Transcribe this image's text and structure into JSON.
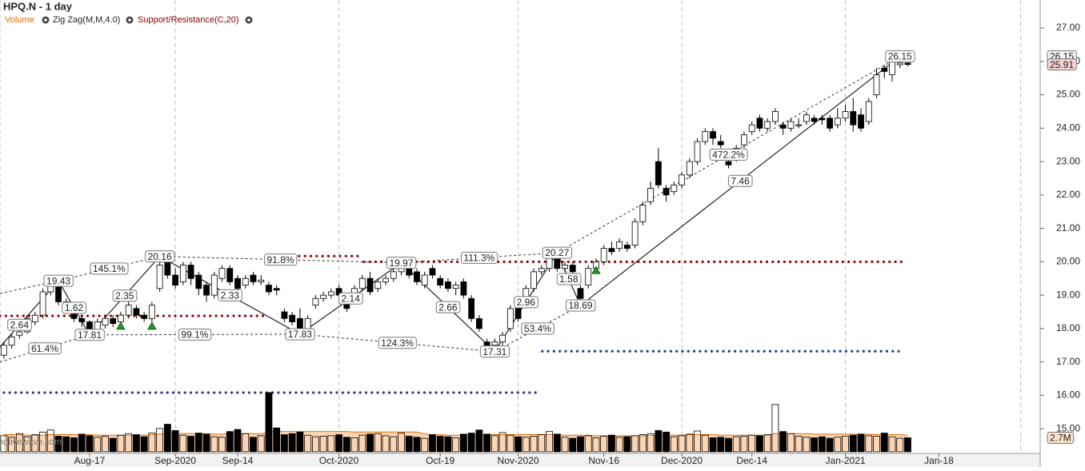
{
  "chart_data": {
    "type": "candlestick",
    "title": "HPQ.N - 1 day",
    "legend": [
      "Volume",
      "Zig Zag(M,M,4.0)",
      "Support/Resistance(C,20)"
    ],
    "legend_colors": [
      "#e07000",
      "#222222",
      "#8b0000"
    ],
    "watermark": "motivewave.com",
    "xlim": [
      -0.5,
      133
    ],
    "xticks": [
      {
        "value": 11,
        "label": "Aug-17"
      },
      {
        "value": 22,
        "label": "Sep-2020"
      },
      {
        "value": 30,
        "label": "Sep-14"
      },
      {
        "value": 43,
        "label": "Oct-2020"
      },
      {
        "value": 56,
        "label": "Oct-19"
      },
      {
        "value": 66,
        "label": "Nov-2020"
      },
      {
        "value": 77,
        "label": "Nov-16"
      },
      {
        "value": 87,
        "label": "Dec-2020"
      },
      {
        "value": 96,
        "label": "Dec-14"
      },
      {
        "value": 108,
        "label": "Jan-2021"
      },
      {
        "value": 120,
        "label": "Jan-18"
      }
    ],
    "xgrid": [
      -0.5,
      22,
      43,
      66,
      87,
      108,
      130.5
    ],
    "ylim": [
      14.26,
      27.84
    ],
    "yticks": [
      {
        "value": 15,
        "label": "15.00"
      },
      {
        "value": 16,
        "label": "16.00"
      },
      {
        "value": 17,
        "label": "17.00"
      },
      {
        "value": 18,
        "label": "18.00"
      },
      {
        "value": 19,
        "label": "19.00"
      },
      {
        "value": 20,
        "label": "20.00"
      },
      {
        "value": 21,
        "label": "21.00"
      },
      {
        "value": 22,
        "label": "22.00"
      },
      {
        "value": 23,
        "label": "23.00"
      },
      {
        "value": 24,
        "label": "24.00"
      },
      {
        "value": 25,
        "label": "25.00"
      },
      {
        "value": 26,
        "label": "26.00"
      },
      {
        "value": 27,
        "label": "27.00"
      }
    ],
    "up_color": "#ffffff",
    "down_color": "#000000",
    "open": [
      17.2,
      17.5,
      17.8,
      17.9,
      18.2,
      18.4,
      19.1,
      19.4,
      18.8,
      18.5,
      18.3,
      18.2,
      17.95,
      18.1,
      18.3,
      18.2,
      18.4,
      18.6,
      18.4,
      18.3,
      19.2,
      20.0,
      19.6,
      19.4,
      19.9,
      19.6,
      19.3,
      19.0,
      19.5,
      19.8,
      19.5,
      19.3,
      19.6,
      19.4,
      19.3,
      19.2,
      18.5,
      18.4,
      18.3,
      18.0,
      18.7,
      18.9,
      19.0,
      19.2,
      18.8,
      18.9,
      19.2,
      19.5,
      19.2,
      19.4,
      19.5,
      19.7,
      19.8,
      19.7,
      19.3,
      19.8,
      19.5,
      19.4,
      19.2,
      19.4,
      18.9,
      18.3,
      17.6,
      17.5,
      17.6,
      18.0,
      18.6,
      18.7,
      19.2,
      19.7,
      19.8,
      20.1,
      19.8,
      19.9,
      19.2,
      19.3,
      19.8,
      20.0,
      20.4,
      20.4,
      20.5,
      20.5,
      21.2,
      21.8,
      23.0,
      22.2,
      22.1,
      22.3,
      22.6,
      23.0,
      23.6,
      23.9,
      23.6,
      23.0,
      23.1,
      23.5,
      23.9,
      24.3,
      24.0,
      24.2,
      24.1,
      24.0,
      24.1,
      24.2,
      24.3,
      24.3,
      24.3,
      24.1,
      24.3,
      24.5,
      24.4,
      24.2,
      25.0,
      25.8,
      25.6,
      25.9,
      25.95
    ],
    "high": [
      17.6,
      17.85,
      18.0,
      18.4,
      18.5,
      19.2,
      19.35,
      19.43,
      18.9,
      18.6,
      18.4,
      18.25,
      18.3,
      18.4,
      18.4,
      18.5,
      18.8,
      18.7,
      18.5,
      18.8,
      20.16,
      20.1,
      19.8,
      20.0,
      20.0,
      19.7,
      19.4,
      19.7,
      19.9,
      19.9,
      19.6,
      19.6,
      19.7,
      19.6,
      19.4,
      19.3,
      18.6,
      18.5,
      18.6,
      18.4,
      19.0,
      19.1,
      19.2,
      19.3,
      18.9,
      19.3,
      19.6,
      19.7,
      19.5,
      19.6,
      19.8,
      19.97,
      19.9,
      19.8,
      19.7,
      19.9,
      19.6,
      19.5,
      19.4,
      19.5,
      19.0,
      18.4,
      17.7,
      17.7,
      17.9,
      18.7,
      18.7,
      19.3,
      19.8,
      19.9,
      20.2,
      20.27,
      20.0,
      20.0,
      19.3,
      19.9,
      20.1,
      20.5,
      20.6,
      20.7,
      20.6,
      21.3,
      21.8,
      22.4,
      23.4,
      22.3,
      22.4,
      22.7,
      23.1,
      23.7,
      24.0,
      24.0,
      23.8,
      23.1,
      23.5,
      23.9,
      24.2,
      24.4,
      24.3,
      24.6,
      24.2,
      24.3,
      24.3,
      24.5,
      24.4,
      24.4,
      24.4,
      24.6,
      24.7,
      24.9,
      24.6,
      24.9,
      25.8,
      25.9,
      26.1,
      26.15,
      26.0
    ],
    "low": [
      17.1,
      17.4,
      17.7,
      17.85,
      18.1,
      18.3,
      19.0,
      18.7,
      18.5,
      18.2,
      18.05,
      17.81,
      17.9,
      18.0,
      18.05,
      18.1,
      18.3,
      18.3,
      18.2,
      18.2,
      19.1,
      19.5,
      19.2,
      19.3,
      19.3,
      19.0,
      18.8,
      18.9,
      19.4,
      19.3,
      19.1,
      19.2,
      19.3,
      19.3,
      19.0,
      19.0,
      18.2,
      18.1,
      17.83,
      17.9,
      18.6,
      18.8,
      18.9,
      18.9,
      18.5,
      18.8,
      19.1,
      19.0,
      19.1,
      19.3,
      19.4,
      19.6,
      19.5,
      19.3,
      19.2,
      19.5,
      19.2,
      19.1,
      19.0,
      18.9,
      18.2,
      17.9,
      17.35,
      17.31,
      17.5,
      17.9,
      18.2,
      18.6,
      19.1,
      19.6,
      19.7,
      19.7,
      19.7,
      19.6,
      18.69,
      19.2,
      19.7,
      19.9,
      20.2,
      20.3,
      20.3,
      20.4,
      21.1,
      21.7,
      22.2,
      21.8,
      22.0,
      22.2,
      22.5,
      22.9,
      23.5,
      23.5,
      23.4,
      22.8,
      23.0,
      23.4,
      23.8,
      23.9,
      23.9,
      24.1,
      23.8,
      23.9,
      24.0,
      24.1,
      24.1,
      24.1,
      23.9,
      24.0,
      24.2,
      23.9,
      23.9,
      24.1,
      24.9,
      25.5,
      25.4,
      25.8,
      25.85
    ],
    "close": [
      17.5,
      17.75,
      17.9,
      18.3,
      18.4,
      19.1,
      19.3,
      18.8,
      18.6,
      18.3,
      18.2,
      17.95,
      18.2,
      18.3,
      18.15,
      18.4,
      18.7,
      18.4,
      18.3,
      18.7,
      19.9,
      19.6,
      19.3,
      19.9,
      19.5,
      19.2,
      19.0,
      19.6,
      19.8,
      19.4,
      19.2,
      19.5,
      19.4,
      19.45,
      19.1,
      19.15,
      18.3,
      18.2,
      18.0,
      18.3,
      18.9,
      19.0,
      19.1,
      19.0,
      18.6,
      19.2,
      19.5,
      19.1,
      19.4,
      19.5,
      19.7,
      19.9,
      19.6,
      19.4,
      19.6,
      19.6,
      19.3,
      19.2,
      19.3,
      19.0,
      18.3,
      18.0,
      17.5,
      17.6,
      17.8,
      18.6,
      18.3,
      19.2,
      19.7,
      19.8,
      20.1,
      19.8,
      19.9,
      19.7,
      18.9,
      19.8,
      20.0,
      20.4,
      20.3,
      20.6,
      20.4,
      21.2,
      21.7,
      22.2,
      22.3,
      22.0,
      22.3,
      22.6,
      23.0,
      23.6,
      23.9,
      23.7,
      23.5,
      22.9,
      23.4,
      23.8,
      24.1,
      24.0,
      24.2,
      24.5,
      24.0,
      24.2,
      24.1,
      24.4,
      24.2,
      24.25,
      24.0,
      24.3,
      24.5,
      24.1,
      24.0,
      24.8,
      25.6,
      25.7,
      26.0,
      25.95,
      25.91
    ],
    "volume": {
      "name": "Volume",
      "color": "#e07000",
      "ylim": [
        0,
        12
      ],
      "values": [
        3.1,
        2.8,
        3.5,
        2.9,
        3.3,
        3.8,
        4.2,
        3.0,
        2.9,
        2.7,
        3.4,
        3.1,
        2.8,
        3.0,
        2.6,
        3.2,
        3.5,
        3.3,
        2.9,
        3.6,
        4.5,
        5.3,
        4.1,
        3.2,
        3.0,
        3.6,
        3.4,
        2.9,
        2.8,
        3.9,
        4.3,
        3.5,
        2.8,
        3.1,
        11.4,
        4.6,
        3.3,
        3.5,
        3.8,
        3.2,
        2.9,
        3.0,
        3.1,
        3.3,
        2.8,
        2.7,
        3.2,
        3.4,
        3.5,
        3.1,
        2.9,
        3.6,
        3.0,
        2.8,
        2.6,
        3.3,
        3.0,
        2.9,
        2.7,
        3.4,
        3.6,
        4.2,
        3.4,
        3.1,
        3.7,
        3.2,
        2.9,
        2.8,
        3.0,
        3.3,
        3.9,
        3.4,
        2.8,
        2.6,
        2.9,
        3.1,
        2.7,
        3.0,
        3.2,
        2.8,
        2.9,
        3.1,
        3.3,
        3.5,
        4.1,
        3.8,
        2.9,
        3.1,
        3.4,
        4.0,
        3.2,
        2.7,
        2.8,
        2.6,
        2.9,
        3.0,
        3.2,
        3.1,
        3.3,
        9.1,
        3.9,
        3.5,
        3.0,
        2.8,
        2.7,
        2.9,
        2.6,
        2.8,
        3.0,
        3.2,
        3.4,
        3.1,
        3.0,
        3.6,
        2.9,
        2.6,
        2.7
      ],
      "ma": [
        3.3,
        3.3,
        3.3,
        3.2,
        3.2,
        3.2,
        3.3,
        3.3,
        3.3,
        3.3,
        3.3,
        3.3,
        3.2,
        3.2,
        3.2,
        3.2,
        3.2,
        3.2,
        3.2,
        3.3,
        3.4,
        3.5,
        3.5,
        3.5,
        3.5,
        3.5,
        3.5,
        3.4,
        3.4,
        3.5,
        3.5,
        3.5,
        3.5,
        3.4,
        3.8,
        3.9,
        3.9,
        3.9,
        3.9,
        3.9,
        3.9,
        3.9,
        3.9,
        3.9,
        3.9,
        3.8,
        3.8,
        3.8,
        3.8,
        3.8,
        3.8,
        3.8,
        3.8,
        3.8,
        3.4,
        3.3,
        3.3,
        3.2,
        3.2,
        3.2,
        3.2,
        3.2,
        3.3,
        3.3,
        3.3,
        3.3,
        3.3,
        3.3,
        3.3,
        3.3,
        3.3,
        3.3,
        3.2,
        3.2,
        3.2,
        3.2,
        3.1,
        3.1,
        3.1,
        3.1,
        3.1,
        3.1,
        3.1,
        3.2,
        3.2,
        3.2,
        3.2,
        3.2,
        3.3,
        3.3,
        3.3,
        3.3,
        3.2,
        3.2,
        3.2,
        3.2,
        3.2,
        3.2,
        3.2,
        3.5,
        3.5,
        3.5,
        3.5,
        3.5,
        3.4,
        3.4,
        3.4,
        3.4,
        3.4,
        3.4,
        3.4,
        3.4,
        3.3,
        3.3,
        3.3,
        3.3,
        3.2
      ],
      "last_label": "2.7M"
    },
    "zigzag": {
      "x": [
        -3,
        7,
        11,
        20,
        38,
        51,
        63,
        71,
        74,
        115
      ],
      "y": [
        16.79,
        19.43,
        17.81,
        20.16,
        17.83,
        19.97,
        17.31,
        20.27,
        18.69,
        26.15
      ],
      "swings": [
        2.64,
        1.62,
        2.35,
        2.33,
        2.14,
        2.66,
        2.96,
        1.58,
        7.46
      ]
    },
    "trend_highs": {
      "x": [
        -0.5,
        7,
        20,
        51,
        71,
        115
      ],
      "y": [
        19.05,
        19.43,
        20.16,
        19.97,
        20.27,
        26.15
      ],
      "labels": [
        null,
        "145.1%",
        "91.8%",
        "111.3%",
        "472.2%"
      ]
    },
    "trend_lows": {
      "x": [
        -0.5,
        11,
        38,
        63,
        74
      ],
      "y": [
        17.0,
        17.81,
        17.83,
        17.31,
        18.69
      ],
      "labels": [
        "61.4%",
        "99.1%",
        "124.3%",
        "53.4%"
      ]
    },
    "levels": [
      {
        "value": 18.38,
        "from": -0.5,
        "to": 33.4,
        "color": "#990000"
      },
      {
        "value": 20.17,
        "from": 34.9,
        "to": 45.7,
        "color": "#990000"
      },
      {
        "value": 20.0,
        "from": 46.2,
        "to": 115.5,
        "color": "#990000"
      },
      {
        "value": 17.32,
        "from": 69.1,
        "to": 115.5,
        "color": "#1f3c88"
      },
      {
        "value": 16.08,
        "from": 0,
        "to": 68.3,
        "color": "#1f3c88"
      }
    ],
    "signals": {
      "x": [
        4,
        15,
        19,
        76
      ],
      "y": [
        17.59,
        18.19,
        18.19,
        19.86
      ],
      "color": "#1e9a1e"
    }
  }
}
